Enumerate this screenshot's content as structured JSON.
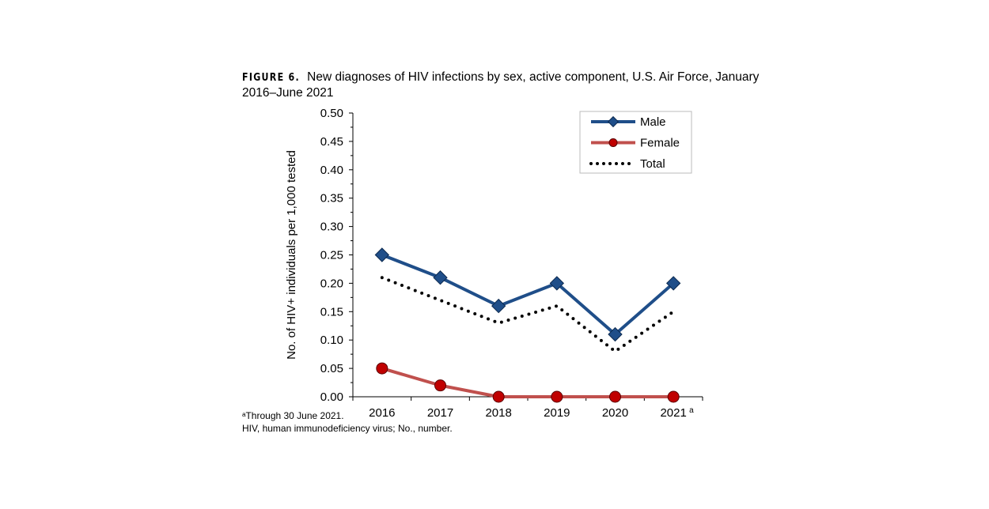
{
  "title": {
    "label": "FIGURE 6.",
    "text": "New diagnoses of HIV infections by sex, active component, U.S. Air Force, January 2016–June 2021"
  },
  "notes": [
    "ᵃThrough 30 June 2021.",
    "HIV, human immunodeficiency virus; No., number."
  ],
  "chart_data": {
    "type": "line",
    "title": "New diagnoses of HIV infections by sex, active component, U.S. Air Force, January 2016–June 2021",
    "xlabel": "",
    "ylabel": "No. of HIV+ individuals per 1,000 tested",
    "categories": [
      "2016",
      "2017",
      "2018",
      "2019",
      "2020",
      "2021"
    ],
    "category_superscripts": [
      "",
      "",
      "",
      "",
      "",
      "a"
    ],
    "ylim": [
      0,
      0.5
    ],
    "yticks": [
      "0.00",
      "0.05",
      "0.10",
      "0.15",
      "0.20",
      "0.25",
      "0.30",
      "0.35",
      "0.40",
      "0.45",
      "0.50"
    ],
    "grid": false,
    "legend_position": "top-right",
    "series": [
      {
        "name": "Male",
        "values": [
          0.25,
          0.21,
          0.16,
          0.2,
          0.11,
          0.2
        ],
        "color": "#1f4e89",
        "marker": "diamond",
        "style": "solid"
      },
      {
        "name": "Female",
        "values": [
          0.05,
          0.02,
          0.0,
          0.0,
          0.0,
          0.0
        ],
        "color": "#c0504d",
        "marker_color": "#c00000",
        "marker": "circle",
        "style": "solid"
      },
      {
        "name": "Total",
        "values": [
          0.21,
          0.17,
          0.13,
          0.16,
          0.08,
          0.15
        ],
        "color": "#000000",
        "marker": "none",
        "style": "dotted"
      }
    ]
  }
}
